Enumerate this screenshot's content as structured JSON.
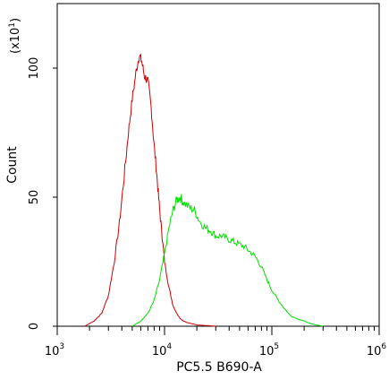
{
  "chart_data": {
    "type": "line",
    "xlabel": "PC5.5 B690-A",
    "ylabel": "Count",
    "y_multiplier": "(x10",
    "y_multiplier_exp": "1",
    "y_multiplier_close": ")",
    "x_scale": "log",
    "xlim": [
      1000,
      1000000
    ],
    "ylim": [
      0,
      125
    ],
    "y_ticks": [
      {
        "value": 0,
        "label": "0"
      },
      {
        "value": 50,
        "label": "50"
      },
      {
        "value": 100,
        "label": "100"
      }
    ],
    "x_ticks": [
      {
        "value": 1000,
        "base": "10",
        "exp": "3"
      },
      {
        "value": 10000,
        "base": "10",
        "exp": "4"
      },
      {
        "value": 100000,
        "base": "10",
        "exp": "5"
      },
      {
        "value": 1000000,
        "base": "10",
        "exp": "6"
      }
    ],
    "grid": false,
    "series": [
      {
        "color": "#cc0000",
        "x": [
          1800,
          2200,
          2600,
          3000,
          3400,
          3800,
          4200,
          4600,
          5000,
          5400,
          5800,
          6100,
          6500,
          7000,
          7500,
          8000,
          8500,
          9000,
          9500,
          10000,
          11000,
          12000,
          13000,
          14000,
          15000,
          16000,
          18000,
          20000,
          23000,
          26000,
          30000
        ],
        "y": [
          0,
          2,
          5,
          12,
          25,
          40,
          58,
          75,
          88,
          98,
          105,
          103,
          97,
          95,
          85,
          70,
          58,
          45,
          35,
          25,
          15,
          8,
          5,
          3,
          2,
          1.5,
          1,
          0.5,
          0.3,
          0.2,
          0
        ]
      },
      {
        "color": "#00dd00",
        "x": [
          5000,
          6000,
          7000,
          8000,
          9000,
          10000,
          11000,
          12000,
          13000,
          14000,
          15000,
          17000,
          19000,
          21000,
          24000,
          27000,
          30000,
          34000,
          38000,
          43000,
          48000,
          55000,
          62000,
          70000,
          80000,
          90000,
          100000,
          115000,
          130000,
          150000,
          170000,
          200000,
          230000,
          260000,
          300000
        ],
        "y": [
          0,
          2,
          5,
          10,
          18,
          28,
          38,
          45,
          49,
          50,
          48,
          46,
          45,
          41,
          38,
          37,
          35,
          35,
          34,
          33,
          32,
          31,
          29,
          27,
          23,
          18,
          14,
          10,
          7,
          4,
          3,
          2,
          1,
          0.5,
          0
        ]
      }
    ]
  }
}
